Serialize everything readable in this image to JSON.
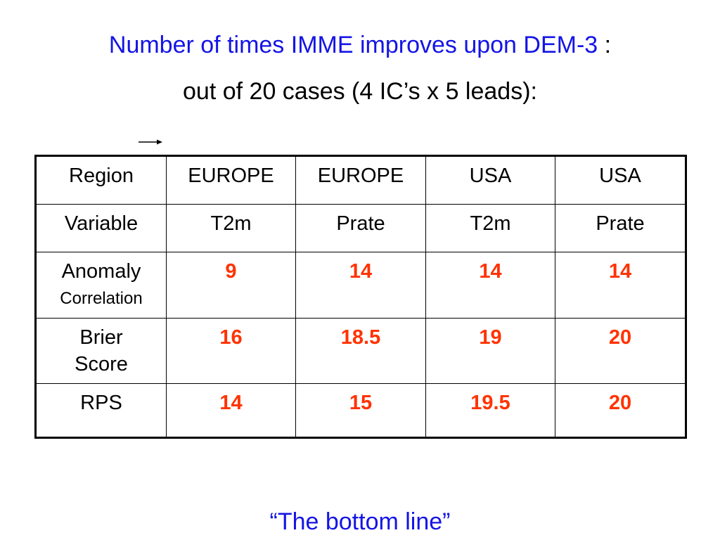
{
  "title": {
    "line1_blue": "Number of times IMME improves upon DEM-3",
    "line1_suffix": " :",
    "line2": "out of 20 cases (4 IC’s x 5 leads):"
  },
  "table": {
    "region_row": {
      "label": "Region",
      "cells": [
        "EUROPE",
        "EUROPE",
        "USA",
        "USA"
      ]
    },
    "variable_row": {
      "label": "Variable",
      "cells": [
        "T2m",
        "Prate",
        "T2m",
        "Prate"
      ]
    },
    "anomaly_row": {
      "label_line1": "Anomaly",
      "label_line2": "Correlation",
      "cells": [
        "9",
        "14",
        "14",
        "14"
      ]
    },
    "brier_row": {
      "label_line1": "Brier",
      "label_line2": "Score",
      "cells": [
        "16",
        "18.5",
        "19",
        "20"
      ]
    },
    "rps_row": {
      "label": "RPS",
      "cells": [
        "14",
        "15",
        "19.5",
        "20"
      ]
    }
  },
  "footer": {
    "text": "“The bottom line”"
  },
  "colors": {
    "title_blue": "#1414e6",
    "value_red": "#ff3300",
    "border": "#000000"
  },
  "icons": {
    "arrow": "right-arrow-icon"
  }
}
